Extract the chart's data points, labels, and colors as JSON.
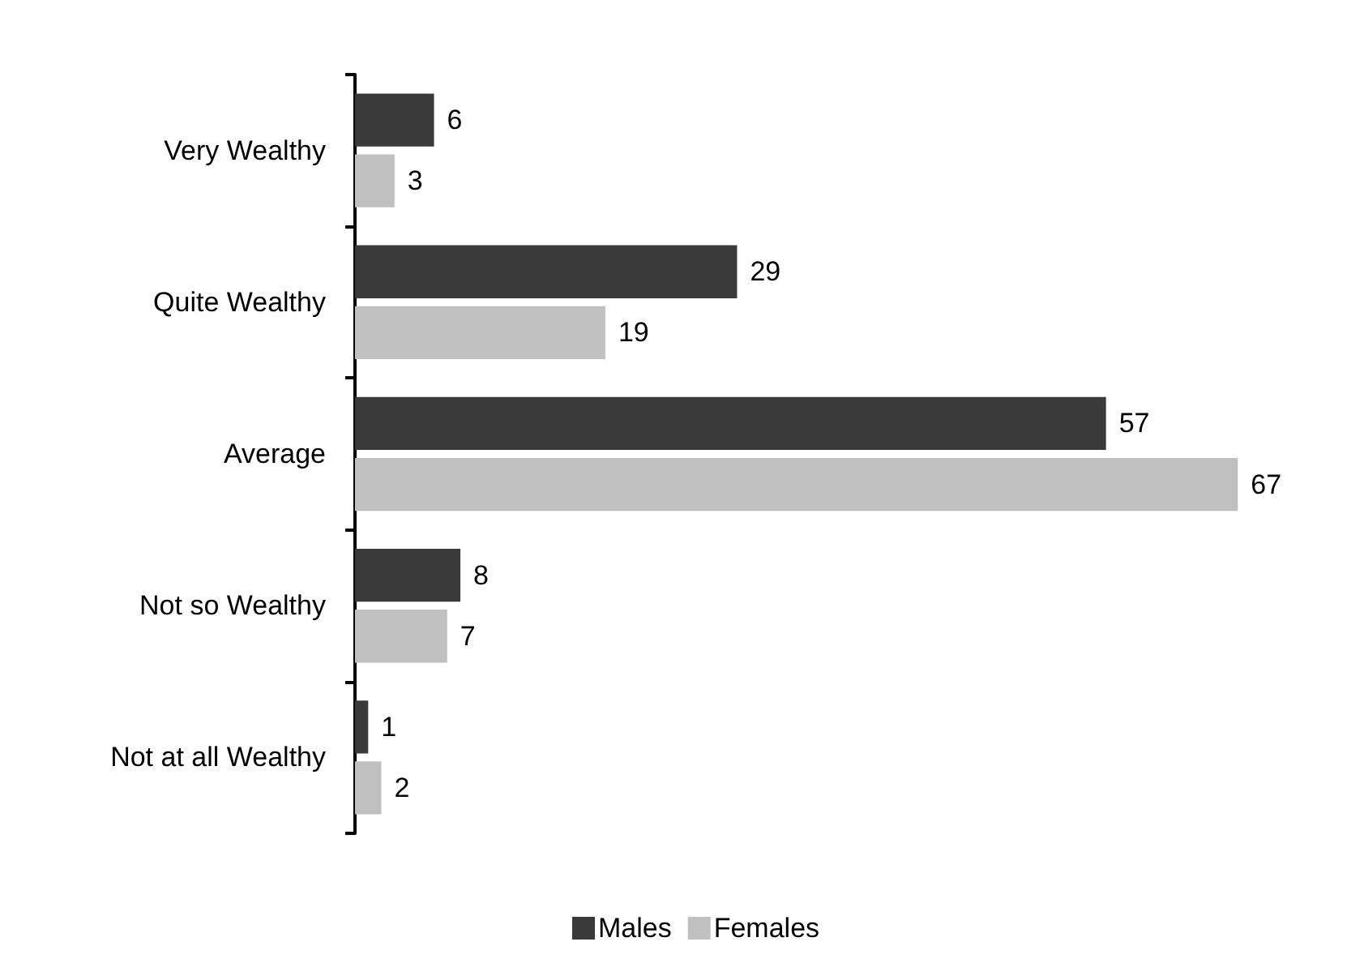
{
  "chart_data": {
    "type": "bar",
    "orientation": "horizontal",
    "categories": [
      "Very Wealthy",
      "Quite Wealthy",
      "Average",
      "Not so Wealthy",
      "Not at all Wealthy"
    ],
    "series": [
      {
        "name": "Males",
        "color": "#3a3a3a",
        "values": [
          6,
          29,
          57,
          8,
          1
        ]
      },
      {
        "name": "Females",
        "color": "#c0c0c0",
        "values": [
          3,
          19,
          67,
          7,
          2
        ]
      }
    ],
    "data_labels": true,
    "legend": "bottom",
    "grid": false
  }
}
